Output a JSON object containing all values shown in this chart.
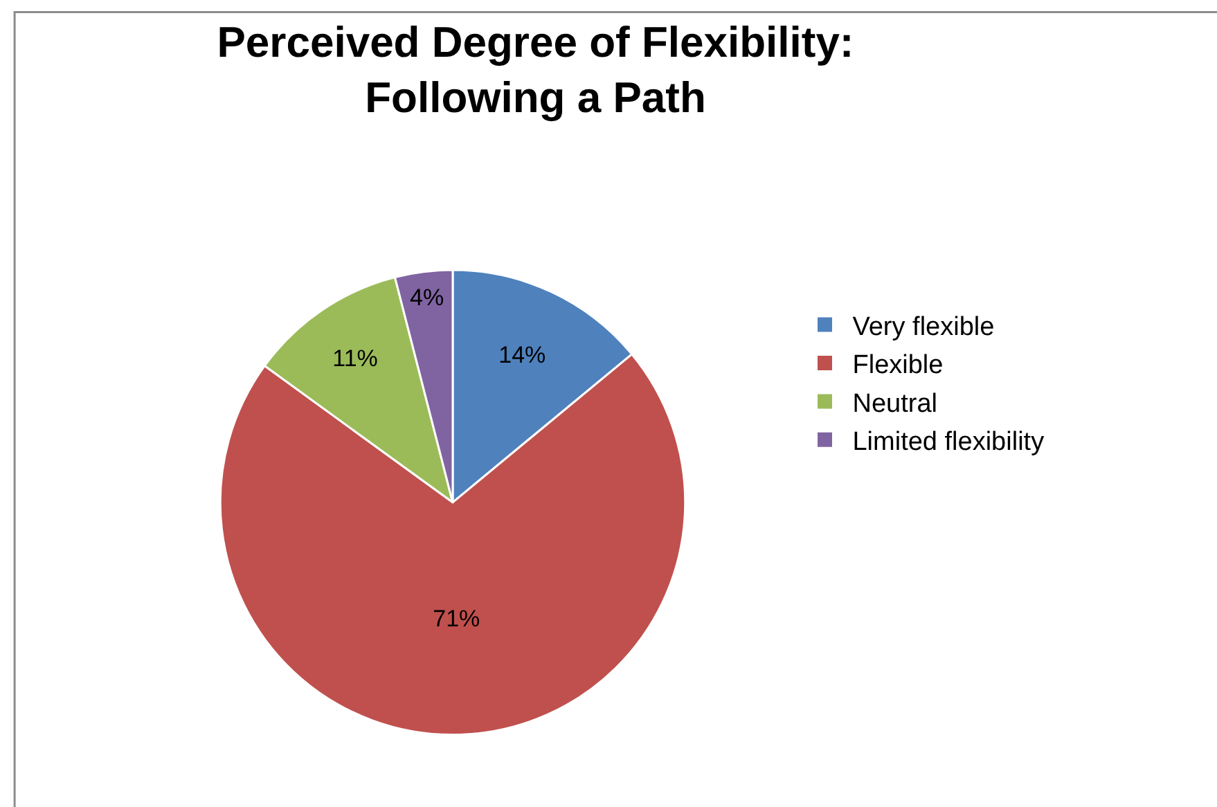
{
  "chart_data": {
    "type": "pie",
    "title": "Perceived Degree of Flexibility:\nFollowing a Path",
    "categories": [
      "Very flexible",
      "Flexible",
      "Neutral",
      "Limited flexibility"
    ],
    "values": [
      14,
      71,
      11,
      4
    ],
    "value_labels": [
      "14%",
      "71%",
      "11%",
      "4%"
    ],
    "colors": [
      "#4f81bd",
      "#c0504d",
      "#9bbb59",
      "#8064a2"
    ],
    "legend": "right"
  }
}
